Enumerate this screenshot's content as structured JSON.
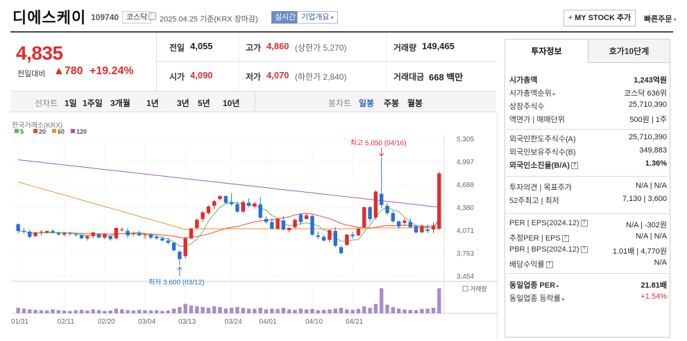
{
  "header": {
    "name": "디에스케이",
    "code": "109740",
    "market": "코스닥",
    "date_label": "2025.04.25 기준(KRX 장마감)",
    "realtime": "실시간",
    "company": "기업개요",
    "mystock": "MY STOCK 추가",
    "quick": "빠른주문"
  },
  "price": {
    "current": "4,835",
    "change_label": "전일대비",
    "change": "780",
    "change_pct": "+19.24%"
  },
  "stats": {
    "prev_label": "전일",
    "prev": "4,055",
    "high_label": "고가",
    "high": "4,860",
    "upper": "(상한가 5,270)",
    "volume_label": "거래량",
    "volume": "149,465",
    "open_label": "시가",
    "open": "4,090",
    "low_label": "저가",
    "low": "4,070",
    "lower": "(하한가 2,840)",
    "amount_label": "거래대금",
    "amount": "668",
    "amount_unit": "백만"
  },
  "tabs": {
    "line_label": "선차트",
    "periods": [
      "1일",
      "1주일",
      "3개월",
      "1년",
      "3년",
      "5년",
      "10년"
    ],
    "candle_label": "봉차트",
    "candles": [
      "일봉",
      "주봉",
      "월봉"
    ],
    "selected_candle": "일봉"
  },
  "chart_meta": {
    "source": "한국거래소(KRX)",
    "ma": [
      {
        "name": "5",
        "color": "#5cb85c"
      },
      {
        "name": "20",
        "color": "#e8443a"
      },
      {
        "name": "60",
        "color": "#f0902a"
      },
      {
        "name": "120",
        "color": "#9b59c2"
      }
    ],
    "high_note": "최고 5,050 (04/16)",
    "low_note": "최저 3,600 (03/12)",
    "volume_label": "거래량"
  },
  "chart_data": {
    "type": "candlestick",
    "yticks": [
      "5,305",
      "4,997",
      "4,688",
      "4,380",
      "4,071",
      "3,763",
      "3,454"
    ],
    "ylim": [
      3454,
      5305
    ],
    "xlabels": [
      "01/31",
      "02/11",
      "02/20",
      "03/04",
      "03/13",
      "03/24",
      "04/01",
      "04/10",
      "04/21"
    ],
    "candles": [
      [
        4150,
        4160,
        4020,
        4060
      ],
      [
        4060,
        4100,
        4020,
        4050
      ],
      [
        4050,
        4080,
        3960,
        3980
      ],
      [
        3990,
        4050,
        3980,
        4040
      ],
      [
        4050,
        4070,
        4000,
        4050
      ],
      [
        4040,
        4060,
        4020,
        4060
      ],
      [
        4060,
        4080,
        4020,
        4040
      ],
      [
        4030,
        4050,
        4000,
        4010
      ],
      [
        4010,
        4040,
        3990,
        4030
      ],
      [
        4030,
        4050,
        4000,
        4020
      ],
      [
        4010,
        4030,
        3990,
        4000
      ],
      [
        4000,
        4020,
        3950,
        3960
      ],
      [
        3960,
        4000,
        3930,
        3990
      ],
      [
        3990,
        4050,
        3960,
        4040
      ],
      [
        4020,
        4030,
        3960,
        3970
      ],
      [
        3970,
        4030,
        3950,
        4020
      ],
      [
        3990,
        4000,
        3930,
        3950
      ],
      [
        3960,
        4110,
        3950,
        4100
      ],
      [
        4070,
        4110,
        4050,
        4080
      ],
      [
        4060,
        4100,
        3960,
        4000
      ],
      [
        4020,
        4050,
        3990,
        4030
      ],
      [
        4030,
        4060,
        3990,
        4000
      ],
      [
        4000,
        4030,
        3950,
        4010
      ],
      [
        4010,
        4030,
        3950,
        3970
      ],
      [
        3980,
        4000,
        3940,
        3960
      ],
      [
        3960,
        3980,
        3920,
        3930
      ],
      [
        3930,
        3970,
        3880,
        3900
      ],
      [
        3900,
        3910,
        3780,
        3800
      ],
      [
        3780,
        3800,
        3600,
        3680
      ],
      [
        3720,
        3980,
        3690,
        3960
      ],
      [
        3960,
        4100,
        3950,
        4090
      ],
      [
        4100,
        4230,
        4080,
        4210
      ],
      [
        4220,
        4330,
        4180,
        4310
      ],
      [
        4300,
        4410,
        4280,
        4390
      ],
      [
        4400,
        4480,
        4350,
        4460
      ],
      [
        4490,
        4540,
        4470,
        4530
      ],
      [
        4530,
        4540,
        4420,
        4440
      ],
      [
        4450,
        4570,
        4400,
        4420
      ],
      [
        4420,
        4460,
        4300,
        4320
      ],
      [
        4320,
        4470,
        4300,
        4450
      ],
      [
        4440,
        4500,
        4380,
        4400
      ],
      [
        4390,
        4450,
        4360,
        4430
      ],
      [
        4420,
        4520,
        4220,
        4240
      ],
      [
        4220,
        4260,
        4160,
        4180
      ],
      [
        4180,
        4230,
        4080,
        4090
      ],
      [
        4090,
        4230,
        4080,
        4220
      ],
      [
        4200,
        4260,
        4060,
        4080
      ],
      [
        4070,
        4110,
        4040,
        4100
      ],
      [
        4110,
        4230,
        4090,
        4210
      ],
      [
        4280,
        4300,
        4140,
        4180
      ],
      [
        4220,
        4290,
        4220,
        4270
      ],
      [
        4260,
        4280,
        3990,
        4010
      ],
      [
        4000,
        4050,
        3950,
        3980
      ],
      [
        3980,
        4010,
        3920,
        3930
      ],
      [
        3940,
        4080,
        3900,
        4070
      ],
      [
        4060,
        4110,
        3840,
        3860
      ],
      [
        3840,
        3860,
        3740,
        3760
      ],
      [
        3870,
        4020,
        3860,
        4010
      ],
      [
        4010,
        4050,
        3960,
        3990
      ],
      [
        4000,
        4100,
        3990,
        4090
      ],
      [
        4110,
        4390,
        4100,
        4380
      ],
      [
        4380,
        4400,
        4180,
        4220
      ],
      [
        4240,
        4610,
        4210,
        4590
      ],
      [
        4560,
        5050,
        4370,
        4410
      ],
      [
        4400,
        4440,
        4270,
        4300
      ],
      [
        4300,
        4330,
        4170,
        4190
      ],
      [
        4190,
        4200,
        4090,
        4120
      ],
      [
        4170,
        4230,
        4130,
        4200
      ],
      [
        4180,
        4230,
        4100,
        4110
      ],
      [
        4120,
        4140,
        4020,
        4040
      ],
      [
        4040,
        4150,
        4030,
        4130
      ],
      [
        4080,
        4150,
        4030,
        4060
      ],
      [
        4080,
        4180,
        4030,
        4130
      ],
      [
        4090,
        4860,
        4070,
        4835
      ]
    ],
    "volumes": [
      35,
      30,
      25,
      22,
      20,
      18,
      25,
      20,
      18,
      15,
      20,
      22,
      18,
      25,
      20,
      15,
      18,
      30,
      25,
      20,
      18,
      22,
      20,
      18,
      20,
      15,
      18,
      30,
      40,
      60,
      50,
      45,
      40,
      35,
      45,
      40,
      30,
      35,
      40,
      35,
      30,
      28,
      35,
      25,
      30,
      28,
      35,
      25,
      22,
      30,
      25,
      28,
      20,
      22,
      25,
      30,
      35,
      25,
      22,
      28,
      45,
      35,
      60,
      160,
      55,
      40,
      30,
      25,
      22,
      20,
      28,
      30,
      35,
      160
    ]
  },
  "sidebar": {
    "tab1": "투자정보",
    "tab2": "호가10단계",
    "rows1": [
      {
        "k": "시가총액",
        "v": "1,243억원",
        "bold": true
      },
      {
        "k": "시가총액순위",
        "v": "코스닥 636위",
        "caret": true
      },
      {
        "k": "상장주식수",
        "v": "25,710,390"
      },
      {
        "k": "액면가 | 매매단위",
        "v": "500원 | 1주"
      }
    ],
    "rows2": [
      {
        "k": "외국인한도주식수(A)",
        "v": "25,710,390"
      },
      {
        "k": "외국인보유주식수(B)",
        "v": "349,883"
      },
      {
        "k": "외국인소진율(B/A)",
        "v": "1.36%",
        "bold": true,
        "info": true
      }
    ],
    "rows3": [
      {
        "k": "투자의견 | 목표주가",
        "v": "N/A | N/A"
      },
      {
        "k": "52주최고 | 최저",
        "v": "7,130 | 3,600"
      }
    ],
    "rows4": [
      {
        "k": "PER | EPS(2024.12)",
        "v": "N/A | -302원",
        "info": true
      },
      {
        "k": "추정PER | EPS",
        "v": "N/A | N/A",
        "info": true
      },
      {
        "k": "PBR | BPS(2024.12)",
        "v": "1.01배 | 4,770원",
        "info": true
      },
      {
        "k": "배당수익률",
        "v": "N/A",
        "info": true
      }
    ],
    "rows5": [
      {
        "k": "동일업종 PER",
        "v": "21.81배",
        "bold": true,
        "caret": true
      },
      {
        "k": "동일업종 등락률",
        "v": "+1.54%",
        "red": true,
        "caret": true
      }
    ]
  }
}
